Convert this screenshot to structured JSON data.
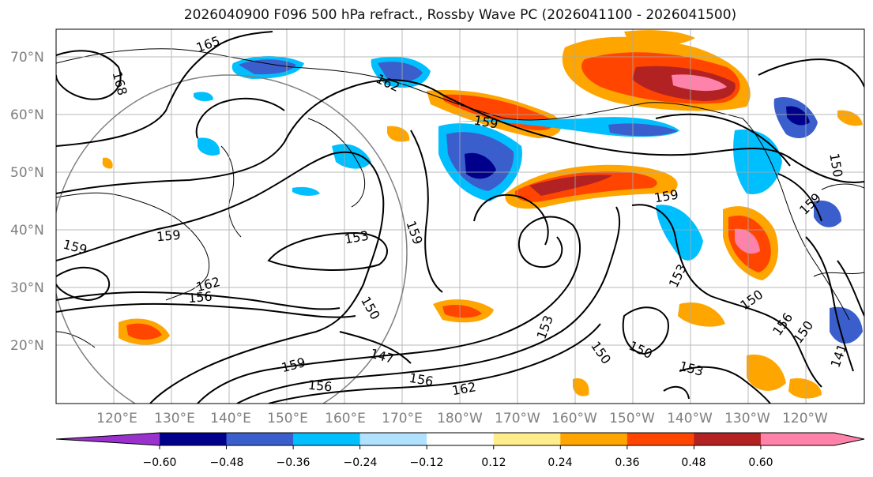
{
  "title": "2026040900 F096 500 hPa refract., Rossby Wave PC (2026041100 - 2026041500)",
  "lat_labels": [
    "70°N",
    "60°N",
    "50°N",
    "40°N",
    "30°N",
    "20°N"
  ],
  "lon_labels": [
    "120°E",
    "130°E",
    "140°E",
    "150°E",
    "160°E",
    "170°E",
    "180°W",
    "170°W",
    "160°W",
    "150°W",
    "140°W",
    "130°W",
    "120°W"
  ],
  "contour_labels": [
    "165",
    "168",
    "162",
    "159",
    "150",
    "159",
    "159",
    "153",
    "159",
    "159",
    "162",
    "156",
    "150",
    "147",
    "159",
    "156",
    "156",
    "162",
    "153",
    "150",
    "153",
    "150",
    "153",
    "156",
    "150",
    "159",
    "141",
    "150"
  ],
  "colorbar": {
    "ticks": [
      "−0.60",
      "−0.48",
      "−0.36",
      "−0.24",
      "−0.12",
      "0.12",
      "0.24",
      "0.36",
      "0.48",
      "0.60"
    ],
    "colors": [
      "#9932cc",
      "#00008b",
      "#3a5fcd",
      "#00bfff",
      "#b0e2ff",
      "#ffffff",
      "#ffec8b",
      "#ffa500",
      "#ff4500",
      "#b22222",
      "#ff82ab"
    ]
  },
  "colors": {
    "strong_negative": "#00008b",
    "negative": "#3a5fcd",
    "weak_negative": "#00bfff",
    "very_weak_negative": "#b0e2ff",
    "weak_positive": "#ffec8b",
    "positive": "#ffa500",
    "strong_positive": "#ff4500",
    "very_strong_positive": "#b22222",
    "extreme_positive": "#ff82ab"
  }
}
